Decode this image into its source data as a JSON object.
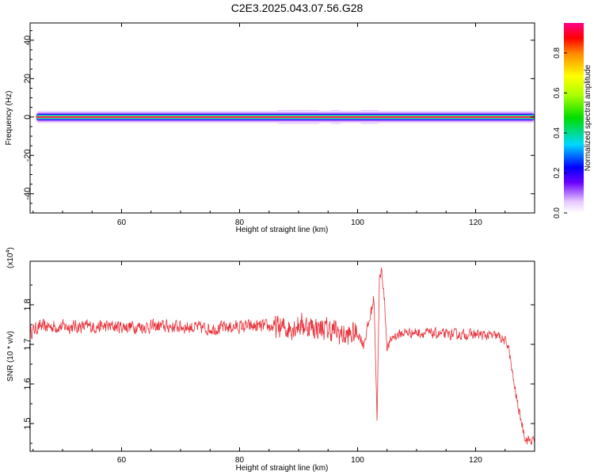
{
  "title": "C2E3.2025.043.07.56.G28",
  "colorbar": {
    "label": "Normalized spectral amplitude",
    "ticks": [
      "0.0",
      "0.2",
      "0.4",
      "0.6",
      "0.8"
    ],
    "range": [
      0,
      0.95
    ]
  },
  "chart_data": [
    {
      "type": "heatmap",
      "name": "spectrogram",
      "xlabel": "Height of straight line (km)",
      "ylabel": "Frequency (Hz)",
      "xlim": [
        44.5,
        130
      ],
      "ylim": [
        -50,
        49
      ],
      "xticks": [
        60,
        80,
        100,
        120
      ],
      "yticks": [
        40,
        20,
        0,
        -20,
        -40
      ],
      "x_start": 45.5,
      "band_center": 0,
      "band_profile": [
        {
          "offset_hz": 0.0,
          "amplitude": 0.95
        },
        {
          "offset_hz": 0.4,
          "amplitude": 0.8
        },
        {
          "offset_hz": 0.7,
          "amplitude": 0.55
        },
        {
          "offset_hz": 1.1,
          "amplitude": 0.35
        },
        {
          "offset_hz": 1.6,
          "amplitude": 0.2
        },
        {
          "offset_hz": 2.3,
          "amplitude": 0.1
        },
        {
          "offset_hz": 3.2,
          "amplitude": 0.04
        }
      ],
      "spread_regions": [
        {
          "x_from": 86,
          "x_to": 94,
          "amplitude": 0.35
        },
        {
          "x_from": 95,
          "x_to": 97.5,
          "amplitude": 0.45
        },
        {
          "x_from": 100,
          "x_to": 104,
          "amplitude": 0.5
        }
      ]
    },
    {
      "type": "line",
      "name": "snr",
      "xlabel": "Height of straight line (km)",
      "ylabel": "SNR (10 * v/v)",
      "scale_label": "(x10",
      "scale_exp": "4",
      "xlim": [
        44.5,
        130
      ],
      "ylim": [
        1.43,
        1.91
      ],
      "xticks": [
        60,
        80,
        100,
        120
      ],
      "yticks": [
        1.5,
        1.6,
        1.7,
        1.8
      ],
      "color": "#e8323a",
      "series": [
        {
          "x": [
            44.5,
            46,
            50,
            55,
            60,
            65,
            70,
            75,
            80,
            85,
            88,
            90,
            92,
            94,
            96,
            98,
            100,
            101,
            102,
            102.8,
            103.3,
            103.7,
            104.1,
            104.6,
            105,
            106,
            108,
            110,
            115,
            120,
            124,
            125.5,
            126.5,
            127.5,
            128.5,
            130
          ],
          "y": [
            1.73,
            1.745,
            1.745,
            1.745,
            1.745,
            1.745,
            1.745,
            1.74,
            1.745,
            1.745,
            1.74,
            1.75,
            1.745,
            1.74,
            1.735,
            1.72,
            1.73,
            1.7,
            1.76,
            1.82,
            1.51,
            1.86,
            1.89,
            1.8,
            1.69,
            1.72,
            1.73,
            1.73,
            1.725,
            1.725,
            1.72,
            1.7,
            1.6,
            1.52,
            1.46,
            1.455
          ]
        }
      ],
      "noise_amplitude": [
        {
          "x_from": 44.5,
          "x_to": 86,
          "amp": 0.022
        },
        {
          "x_from": 86,
          "x_to": 100,
          "amp": 0.04
        },
        {
          "x_from": 100,
          "x_to": 105,
          "amp": 0.02
        },
        {
          "x_from": 105,
          "x_to": 130,
          "amp": 0.017
        }
      ]
    }
  ]
}
